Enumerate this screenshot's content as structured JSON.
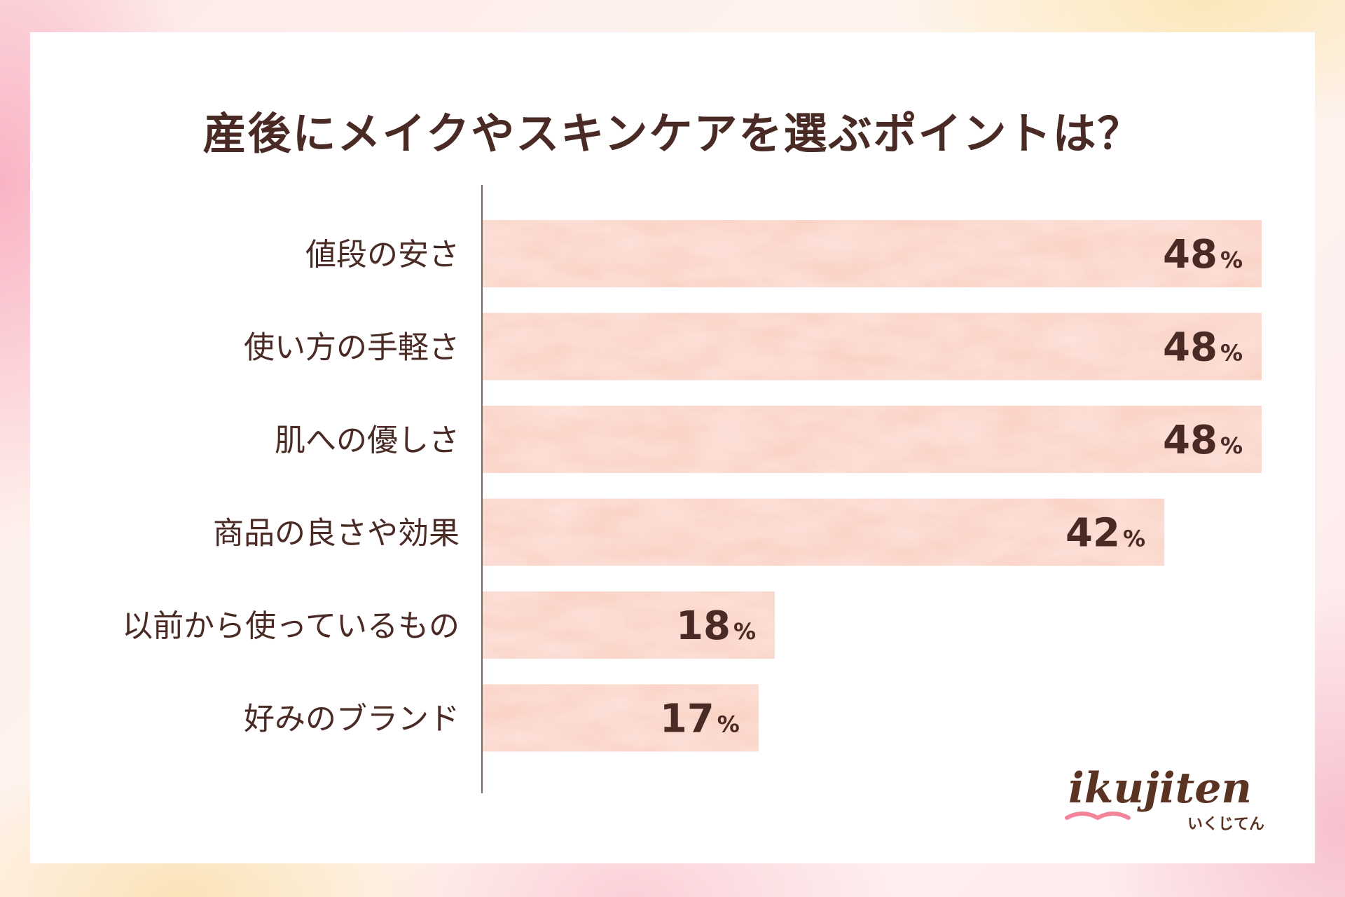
{
  "title": "産後にメイクやスキンケアを選ぶポイントは？",
  "colors": {
    "bar": "#fbd3c7",
    "text": "#4a2a24",
    "axis": "#7a6a66",
    "logo_main": "#5a3322",
    "logo_accent": "#f3849a"
  },
  "logo": {
    "text": "ikujiten",
    "sub": "いくじてん"
  },
  "chart_data": {
    "type": "bar",
    "orientation": "horizontal",
    "categories": [
      "値段の安さ",
      "使い方の手軽さ",
      "肌への優しさ",
      "商品の良さや効果",
      "以前から使っているもの",
      "好みのブランド"
    ],
    "values": [
      48,
      48,
      48,
      42,
      18,
      17
    ],
    "unit": "%",
    "xlim": [
      0,
      48
    ],
    "grid": false
  }
}
